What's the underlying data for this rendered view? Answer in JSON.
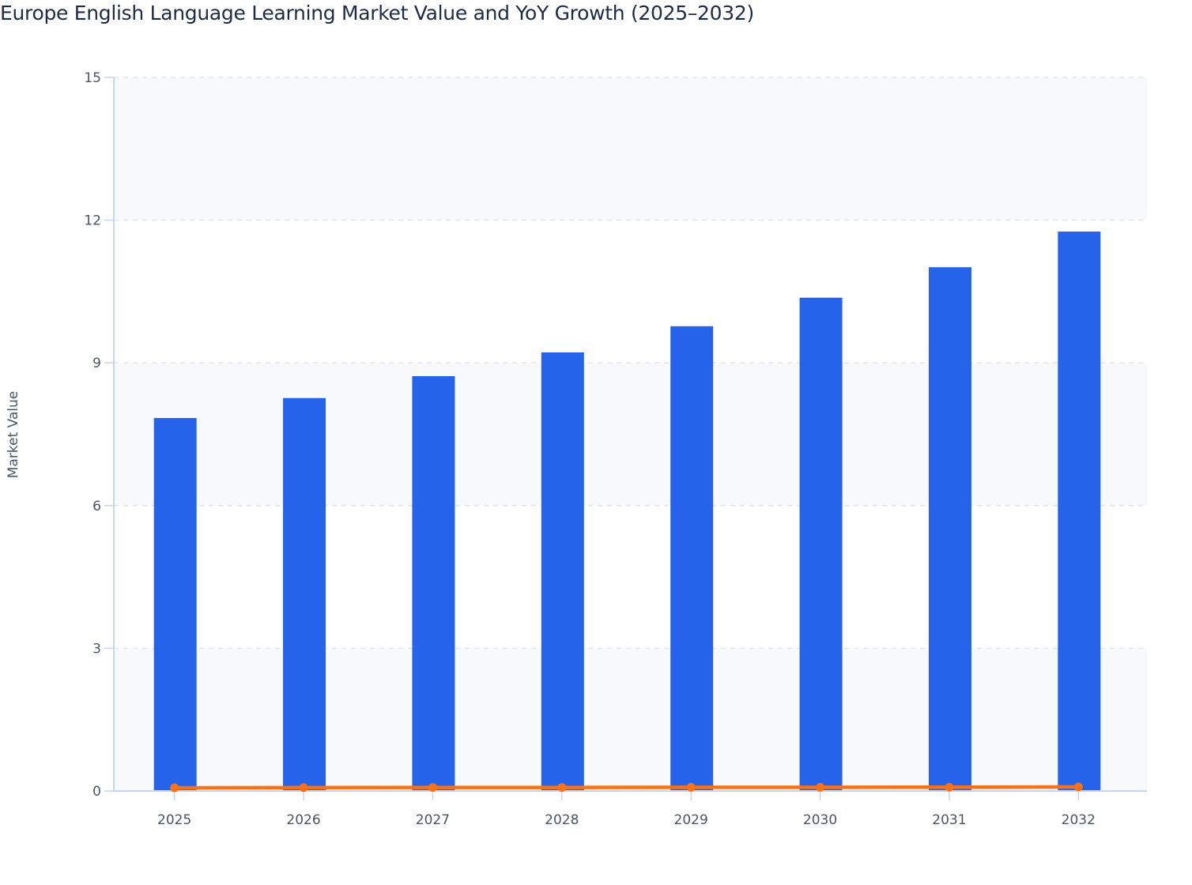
{
  "title": "Europe English Language Learning Market Value and YoY Growth (2025–2032)",
  "colors": {
    "bar": "#2563eb",
    "line": "#f97316",
    "band": "#f8f9fb",
    "grid": "#e3e6ec",
    "axis": "#c9d5f0",
    "text": "#4b5563",
    "title": "#1f2a44"
  },
  "chart_data": {
    "type": "bar",
    "title": "Europe English Language Learning Market Value and YoY Growth (2025–2032)",
    "xlabel": "",
    "ylabel": "Market Value",
    "ylim": [
      0,
      15
    ],
    "yticks": [
      0,
      3,
      6,
      9,
      12,
      15
    ],
    "grid": true,
    "legend": "none",
    "categories": [
      "2025",
      "2026",
      "2027",
      "2028",
      "2029",
      "2030",
      "2031",
      "2032"
    ],
    "series": [
      {
        "name": "Market Value",
        "type": "bar",
        "values": [
          7.84,
          8.26,
          8.72,
          9.22,
          9.77,
          10.37,
          11.01,
          11.76
        ]
      },
      {
        "name": "YoY Growth",
        "type": "line",
        "values": [
          0.05,
          0.054,
          0.056,
          0.057,
          0.06,
          0.061,
          0.062,
          0.068
        ]
      }
    ]
  }
}
